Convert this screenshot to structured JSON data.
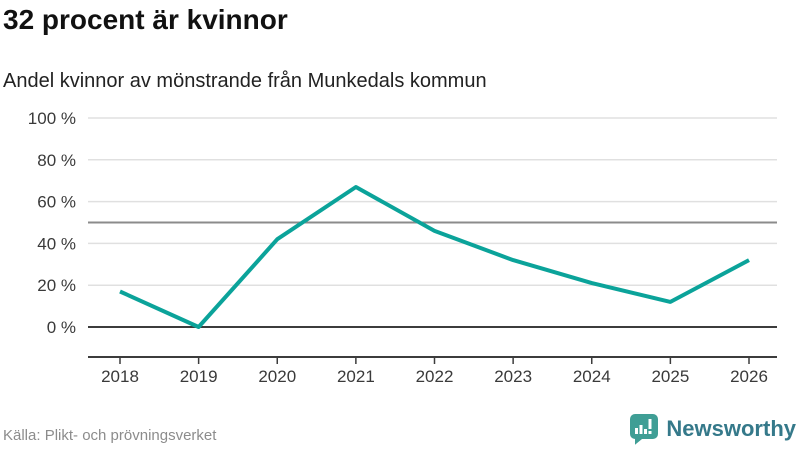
{
  "header": {
    "title": "32 procent är kvinnor",
    "subtitle": "Andel kvinnor av mönstrande från Munkedals kommun"
  },
  "chart_data": {
    "type": "line",
    "title": "32 procent är kvinnor",
    "subtitle": "Andel kvinnor av mönstrande från Munkedals kommun",
    "categories": [
      "2018",
      "2019",
      "2020",
      "2021",
      "2022",
      "2023",
      "2024",
      "2025",
      "2026"
    ],
    "series": [
      {
        "name": "Andel kvinnor av mönstrande",
        "values": [
          17,
          0,
          42,
          67,
          46,
          32,
          21,
          12,
          32
        ]
      }
    ],
    "unit": "%",
    "xlabel": "",
    "ylabel": "",
    "ylim": [
      0,
      100
    ],
    "y_ticks": [
      0,
      20,
      40,
      60,
      80,
      100
    ],
    "y_tick_labels": [
      "0 %",
      "20 %",
      "40 %",
      "60 %",
      "80 %",
      "100 %"
    ],
    "reference_line": 50,
    "grid": "horizontal",
    "legend": "none",
    "line_color": "#0ba39a"
  },
  "footer": {
    "source": "Källa: Plikt- och prövningsverket",
    "brand": "Newsworthy"
  },
  "colors": {
    "line": "#0ba39a",
    "grid_light": "#e0e0e0",
    "reference_line": "#8b8b8b",
    "axis_dark": "#3c3c3c",
    "tick_label": "#3a3a3a",
    "source_text": "#8c8c8c",
    "brand_icon": "#3f9e95",
    "brand_text": "#35798a"
  }
}
